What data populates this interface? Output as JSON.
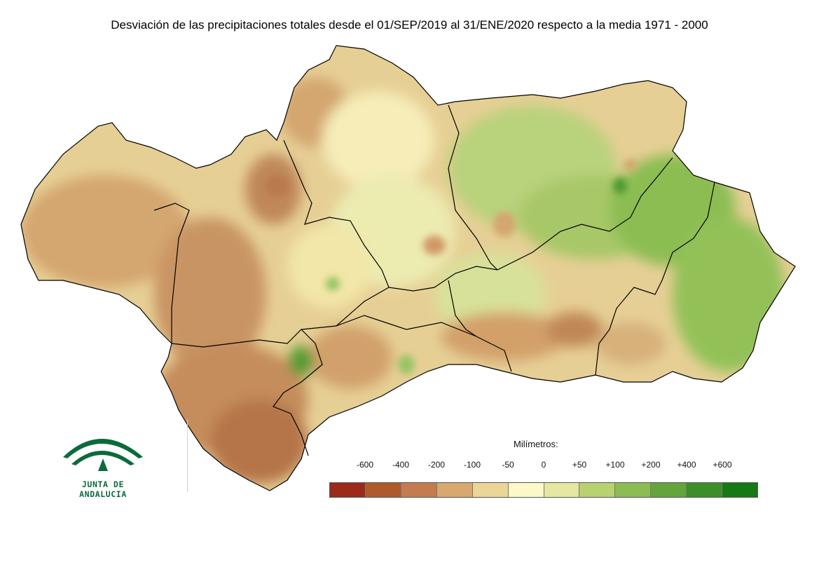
{
  "title": "Desviación de las precipitaciones totales desde el 01/SEP/2019 al 31/ENE/2020 respecto a la media 1971 - 2000",
  "legend": {
    "title": "Milímetros:",
    "labels": [
      "-600",
      "-400",
      "-200",
      "-100",
      "-50",
      "0",
      "+50",
      "+100",
      "+200",
      "+400",
      "+600"
    ],
    "colors": [
      "#9b2a1a",
      "#b05a2c",
      "#c47c4e",
      "#d9a86e",
      "#ebd697",
      "#fdf8c8",
      "#e4e8a0",
      "#b8d270",
      "#8cbd52",
      "#62a53a",
      "#3c8e28",
      "#157a14"
    ]
  },
  "logo": {
    "text": "JUNTA DE ANDALUCIA",
    "icon": "junta-de-andalucia-logo-icon",
    "color": "#0b6b3a"
  },
  "map": {
    "region": "Andalucía",
    "outline_color": "#000000"
  }
}
